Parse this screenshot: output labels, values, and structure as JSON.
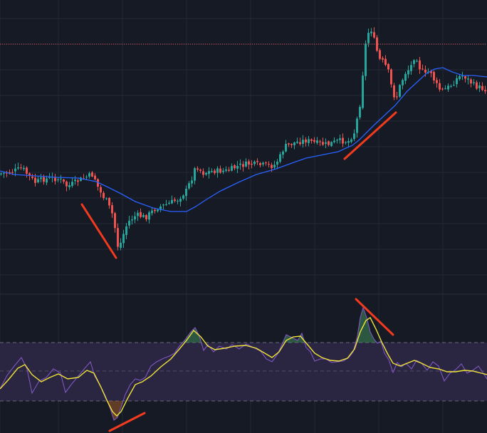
{
  "theme": {
    "background": "#161a25",
    "grid": "#232837",
    "pane_separator": "#2a2e39",
    "bull": "#26a69a",
    "bear": "#ef5350",
    "ma_line": "#2962ff",
    "price_level_line": "#ef5350",
    "annotation": "#f23a1e",
    "rsi_line": "#7e57c2",
    "rsi_ma": "#f0e33a",
    "rsi_band_fill": "#2a2540",
    "rsi_band_lines": "#787b86"
  },
  "chart_data": [
    {
      "type": "candlestick",
      "pane": "price",
      "overlays": [
        "moving-average",
        "horizontal-level"
      ],
      "grid": true,
      "legend": "none",
      "price_path": [
        [
          0,
          244
        ],
        [
          8,
          243
        ],
        [
          20,
          240
        ],
        [
          32,
          236
        ],
        [
          40,
          246
        ],
        [
          50,
          256
        ],
        [
          60,
          252
        ],
        [
          72,
          250
        ],
        [
          85,
          252
        ],
        [
          95,
          262
        ],
        [
          110,
          254
        ],
        [
          125,
          247
        ],
        [
          132,
          245
        ],
        [
          140,
          268
        ],
        [
          150,
          282
        ],
        [
          158,
          300
        ],
        [
          163,
          325
        ],
        [
          167,
          352
        ],
        [
          172,
          334
        ],
        [
          180,
          312
        ],
        [
          192,
          302
        ],
        [
          205,
          305
        ],
        [
          220,
          292
        ],
        [
          235,
          287
        ],
        [
          250,
          280
        ],
        [
          262,
          268
        ],
        [
          270,
          250
        ],
        [
          276,
          232
        ],
        [
          285,
          243
        ],
        [
          300,
          240
        ],
        [
          320,
          240
        ],
        [
          335,
          233
        ],
        [
          350,
          230
        ],
        [
          370,
          232
        ],
        [
          385,
          233
        ],
        [
          393,
          222
        ],
        [
          400,
          206
        ],
        [
          415,
          200
        ],
        [
          430,
          197
        ],
        [
          445,
          201
        ],
        [
          460,
          203
        ],
        [
          475,
          198
        ],
        [
          490,
          198
        ],
        [
          498,
          186
        ],
        [
          504,
          158
        ],
        [
          508,
          135
        ],
        [
          512,
          72
        ],
        [
          517,
          48
        ],
        [
          521,
          38
        ],
        [
          527,
          60
        ],
        [
          533,
          83
        ],
        [
          540,
          88
        ],
        [
          547,
          103
        ],
        [
          552,
          131
        ],
        [
          557,
          138
        ],
        [
          563,
          118
        ],
        [
          570,
          102
        ],
        [
          577,
          95
        ],
        [
          584,
          75
        ],
        [
          590,
          95
        ],
        [
          598,
          105
        ],
        [
          605,
          98
        ],
        [
          612,
          117
        ],
        [
          620,
          128
        ],
        [
          628,
          124
        ],
        [
          636,
          118
        ],
        [
          644,
          108
        ],
        [
          652,
          106
        ],
        [
          660,
          114
        ],
        [
          668,
          121
        ],
        [
          684,
          126
        ]
      ],
      "ma_path": [
        [
          0,
          240
        ],
        [
          20,
          245
        ],
        [
          50,
          247
        ],
        [
          80,
          249
        ],
        [
          110,
          250
        ],
        [
          135,
          255
        ],
        [
          150,
          262
        ],
        [
          170,
          272
        ],
        [
          190,
          283
        ],
        [
          215,
          292
        ],
        [
          240,
          297
        ],
        [
          262,
          297
        ],
        [
          275,
          290
        ],
        [
          290,
          280
        ],
        [
          310,
          268
        ],
        [
          335,
          256
        ],
        [
          360,
          245
        ],
        [
          385,
          238
        ],
        [
          410,
          229
        ],
        [
          430,
          222
        ],
        [
          455,
          217
        ],
        [
          475,
          213
        ],
        [
          495,
          204
        ],
        [
          505,
          196
        ],
        [
          515,
          186
        ],
        [
          525,
          176
        ],
        [
          540,
          162
        ],
        [
          555,
          148
        ],
        [
          572,
          128
        ],
        [
          585,
          116
        ],
        [
          598,
          104
        ],
        [
          610,
          97
        ],
        [
          622,
          95
        ],
        [
          635,
          101
        ],
        [
          650,
          106
        ],
        [
          665,
          106
        ],
        [
          684,
          108
        ]
      ],
      "level_line": {
        "style": "dotted"
      },
      "trend_lines": [
        {
          "from": [
            115,
            287
          ],
          "to": [
            163,
            362
          ]
        },
        {
          "from": [
            484,
            223
          ],
          "to": [
            556,
            158
          ]
        }
      ]
    },
    {
      "type": "line",
      "pane": "oscillator",
      "series": [
        {
          "role": "oscillator",
          "values": [
            [
              0,
              546
            ],
            [
              10,
              527
            ],
            [
              20,
              514
            ],
            [
              30,
              502
            ],
            [
              38,
              518
            ],
            [
              45,
              552
            ],
            [
              55,
              535
            ],
            [
              65,
              530
            ],
            [
              75,
              518
            ],
            [
              85,
              524
            ],
            [
              92,
              551
            ],
            [
              100,
              540
            ],
            [
              110,
              528
            ],
            [
              120,
              516
            ],
            [
              127,
              508
            ],
            [
              133,
              528
            ],
            [
              140,
              540
            ],
            [
              148,
              556
            ],
            [
              155,
              574
            ],
            [
              160,
              590
            ],
            [
              165,
              586
            ],
            [
              170,
              572
            ],
            [
              176,
              554
            ],
            [
              183,
              540
            ],
            [
              190,
              532
            ],
            [
              197,
              534
            ],
            [
              204,
              530
            ],
            [
              212,
              514
            ],
            [
              220,
              508
            ],
            [
              230,
              503
            ],
            [
              238,
              500
            ],
            [
              245,
              496
            ],
            [
              252,
              486
            ],
            [
              260,
              477
            ],
            [
              268,
              466
            ],
            [
              274,
              460
            ],
            [
              280,
              472
            ],
            [
              286,
              492
            ],
            [
              292,
              484
            ],
            [
              300,
              494
            ],
            [
              308,
              486
            ],
            [
              318,
              490
            ],
            [
              326,
              484
            ],
            [
              336,
              490
            ],
            [
              346,
              483
            ],
            [
              356,
              488
            ],
            [
              366,
              493
            ],
            [
              374,
              504
            ],
            [
              382,
              508
            ],
            [
              390,
              497
            ],
            [
              396,
              484
            ],
            [
              402,
              470
            ],
            [
              410,
              474
            ],
            [
              418,
              478
            ],
            [
              424,
              468
            ],
            [
              430,
              488
            ],
            [
              436,
              494
            ],
            [
              442,
              507
            ],
            [
              450,
              504
            ],
            [
              458,
              504
            ],
            [
              466,
              509
            ],
            [
              474,
              508
            ],
            [
              482,
              507
            ],
            [
              490,
              502
            ],
            [
              496,
              494
            ],
            [
              502,
              472
            ],
            [
              506,
              446
            ],
            [
              510,
              432
            ],
            [
              515,
              446
            ],
            [
              520,
              466
            ],
            [
              525,
              476
            ],
            [
              530,
              482
            ],
            [
              535,
              479
            ],
            [
              540,
              496
            ],
            [
              546,
              505
            ],
            [
              552,
              523
            ],
            [
              558,
              509
            ],
            [
              564,
              515
            ],
            [
              570,
              510
            ],
            [
              578,
              518
            ],
            [
              585,
              506
            ],
            [
              592,
              510
            ],
            [
              600,
              520
            ],
            [
              608,
              508
            ],
            [
              616,
              514
            ],
            [
              624,
              535
            ],
            [
              632,
              524
            ],
            [
              640,
              519
            ],
            [
              648,
              511
            ],
            [
              656,
              524
            ],
            [
              664,
              520
            ],
            [
              672,
              514
            ],
            [
              684,
              532
            ]
          ]
        },
        {
          "role": "signal",
          "values": [
            [
              0,
              546
            ],
            [
              12,
              533
            ],
            [
              25,
              517
            ],
            [
              35,
              512
            ],
            [
              45,
              526
            ],
            [
              58,
              536
            ],
            [
              70,
              530
            ],
            [
              82,
              525
            ],
            [
              95,
              532
            ],
            [
              110,
              530
            ],
            [
              122,
              520
            ],
            [
              132,
              524
            ],
            [
              142,
              544
            ],
            [
              150,
              562
            ],
            [
              158,
              578
            ],
            [
              164,
              584
            ],
            [
              170,
              578
            ],
            [
              180,
              558
            ],
            [
              190,
              540
            ],
            [
              200,
              536
            ],
            [
              212,
              528
            ],
            [
              226,
              515
            ],
            [
              240,
              504
            ],
            [
              252,
              490
            ],
            [
              262,
              478
            ],
            [
              272,
              464
            ],
            [
              282,
              473
            ],
            [
              292,
              486
            ],
            [
              302,
              491
            ],
            [
              315,
              489
            ],
            [
              330,
              486
            ],
            [
              345,
              485
            ],
            [
              360,
              489
            ],
            [
              372,
              496
            ],
            [
              382,
              502
            ],
            [
              392,
              494
            ],
            [
              402,
              478
            ],
            [
              412,
              473
            ],
            [
              422,
              472
            ],
            [
              432,
              484
            ],
            [
              442,
              496
            ],
            [
              452,
              502
            ],
            [
              464,
              506
            ],
            [
              476,
              507
            ],
            [
              488,
              503
            ],
            [
              498,
              490
            ],
            [
              506,
              466
            ],
            [
              514,
              450
            ],
            [
              520,
              446
            ],
            [
              528,
              462
            ],
            [
              536,
              480
            ],
            [
              544,
              496
            ],
            [
              552,
              510
            ],
            [
              562,
              514
            ],
            [
              572,
              510
            ],
            [
              582,
              506
            ],
            [
              592,
              510
            ],
            [
              604,
              516
            ],
            [
              616,
              518
            ],
            [
              628,
              522
            ],
            [
              640,
              522
            ],
            [
              652,
              520
            ],
            [
              664,
              521
            ],
            [
              676,
              524
            ],
            [
              684,
              526
            ]
          ]
        }
      ],
      "bands": [
        {
          "role": "upper",
          "style": "dashed"
        },
        {
          "role": "middle",
          "style": "dashed"
        },
        {
          "role": "lower",
          "style": "dashed"
        }
      ],
      "trend_lines": [
        {
          "from": [
            500,
            420
          ],
          "to": [
            552,
            470
          ]
        },
        {
          "from": [
            154,
            605
          ],
          "to": [
            203,
            580
          ]
        }
      ]
    }
  ]
}
